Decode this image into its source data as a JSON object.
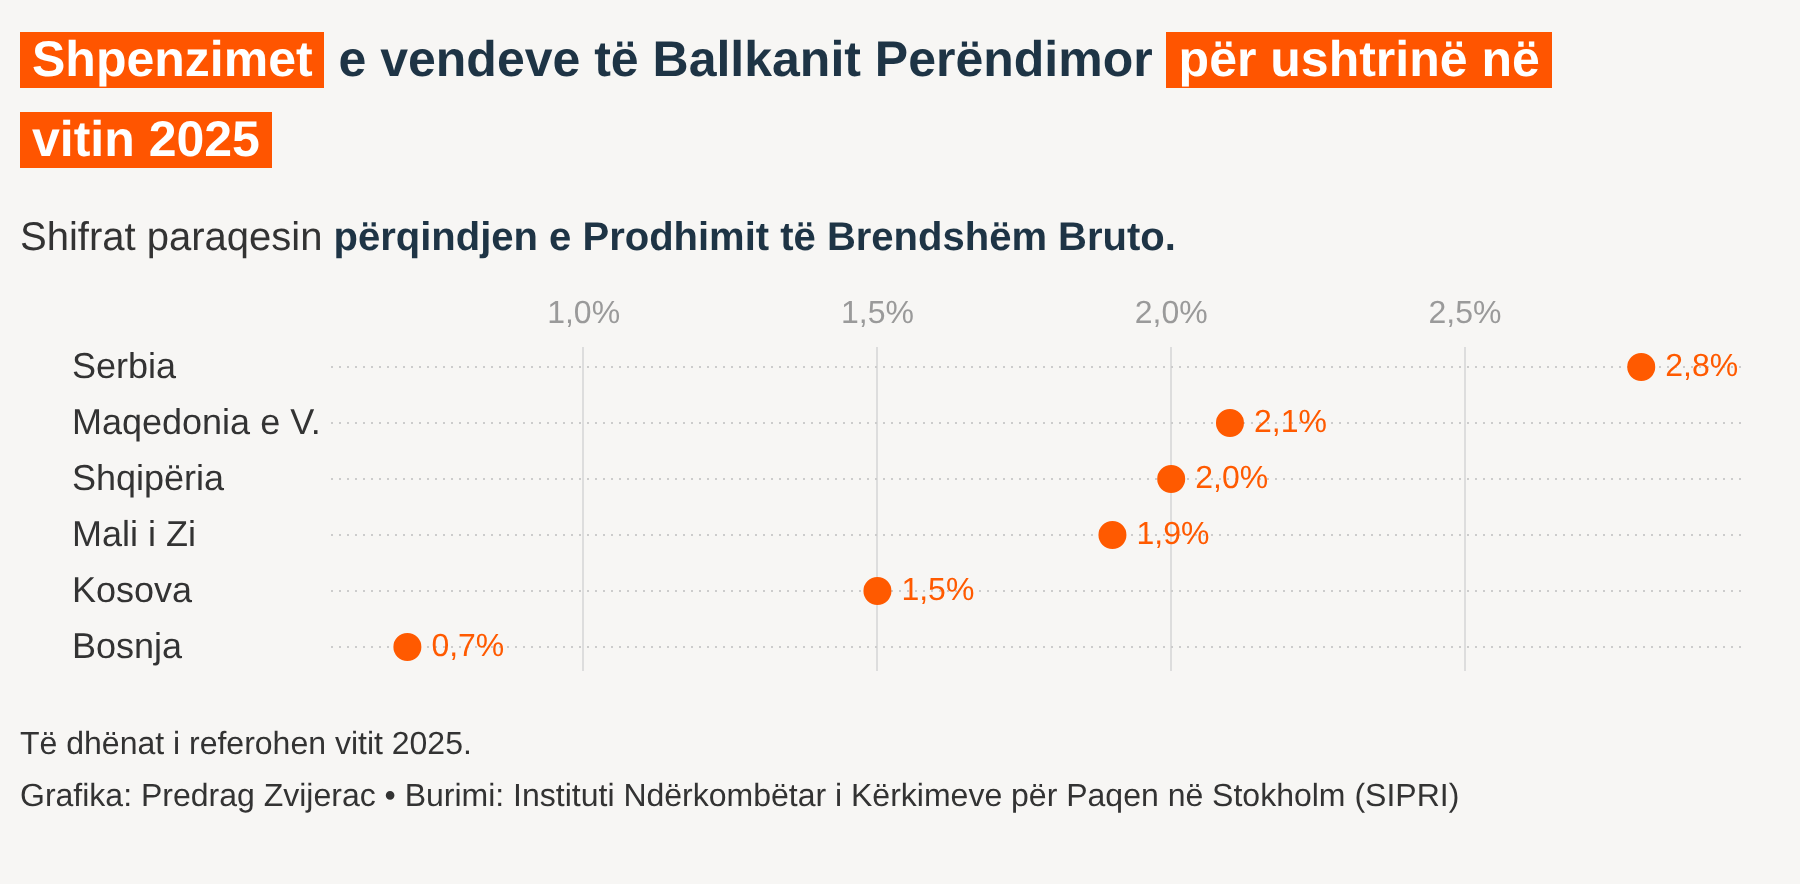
{
  "chart_data": {
    "type": "scatter",
    "orientation": "horizontal",
    "title": "Shpenzimet e vendeve të Ballkanit Perëndimor për ushtrinë në vitin 2025",
    "subtitle": "Shifrat paraqesin përqindjen e Prodhimit të Brendshëm Bruto.",
    "categories": [
      "Serbia",
      "Maqedonia e V.",
      "Shqipëria",
      "Mali i Zi",
      "Kosova",
      "Bosnja"
    ],
    "series": [
      {
        "color": "#ff5a00",
        "values": [
          2.8,
          2.1,
          2.0,
          1.9,
          1.5,
          0.7
        ],
        "value_labels": [
          "2,8%",
          "2,1%",
          "2,0%",
          "1,9%",
          "1,5%",
          "0,7%"
        ]
      }
    ],
    "xlim": [
      0.57,
      2.98
    ],
    "xticks": [
      {
        "value": 1.0,
        "label": "1,0%"
      },
      {
        "value": 1.5,
        "label": "1,5%"
      },
      {
        "value": 2.0,
        "label": "2,0%"
      },
      {
        "value": 2.5,
        "label": "2,5%"
      }
    ],
    "grid": true,
    "marker": "circle",
    "annotations": [
      "Të dhënat i referohen vitit 2025.",
      "Grafika: Predrag Zvijerac • Burimi: Instituti Ndërkombëtar i Kërkimeve për Paqen në Stokholm (SIPRI)"
    ]
  }
}
